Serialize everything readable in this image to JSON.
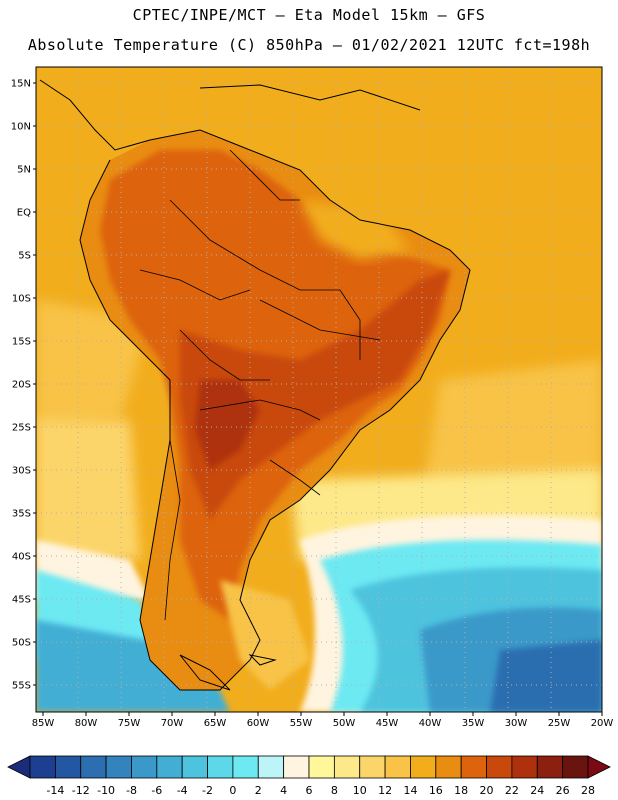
{
  "header": {
    "title_line1": "CPTEC/INPE/MCT –  Eta Model 15km – GFS",
    "title_line2": "Absolute Temperature (C) 850hPa – 01/02/2021 12UTC fct=198h"
  },
  "map": {
    "lat_labels": [
      "15N",
      "10N",
      "5N",
      "EQ",
      "5S",
      "10S",
      "15S",
      "20S",
      "25S",
      "30S",
      "35S",
      "40S",
      "45S",
      "50S",
      "55S"
    ],
    "lon_labels": [
      "85W",
      "80W",
      "75W",
      "70W",
      "65W",
      "60W",
      "55W",
      "50W",
      "45W",
      "40W",
      "35W",
      "30W",
      "25W",
      "20W"
    ],
    "lon_range": [
      -85,
      -20
    ],
    "lat_range": [
      -57.5,
      16.5
    ]
  },
  "colorbar": {
    "labels": [
      "-14",
      "-12",
      "-10",
      "-8",
      "-6",
      "-4",
      "-2",
      "0",
      "2",
      "4",
      "6",
      "8",
      "10",
      "12",
      "14",
      "16",
      "18",
      "20",
      "22",
      "24",
      "26",
      "28"
    ],
    "colors": [
      "#1c3f8f",
      "#2457a1",
      "#2c6eb0",
      "#3383bd",
      "#3a99c9",
      "#43aed4",
      "#4dc3de",
      "#5dd8e8",
      "#6de9f2",
      "#bdf4f8",
      "#fff4df",
      "#fff79a",
      "#fde98a",
      "#fcd56a",
      "#f8c347",
      "#f2ad1c",
      "#e98c12",
      "#dd640d",
      "#c9480b",
      "#ad310c",
      "#8c2010",
      "#6a140f"
    ],
    "left_arrow_color": "#1b2d7a",
    "right_arrow_color": "#7a0a14"
  }
}
